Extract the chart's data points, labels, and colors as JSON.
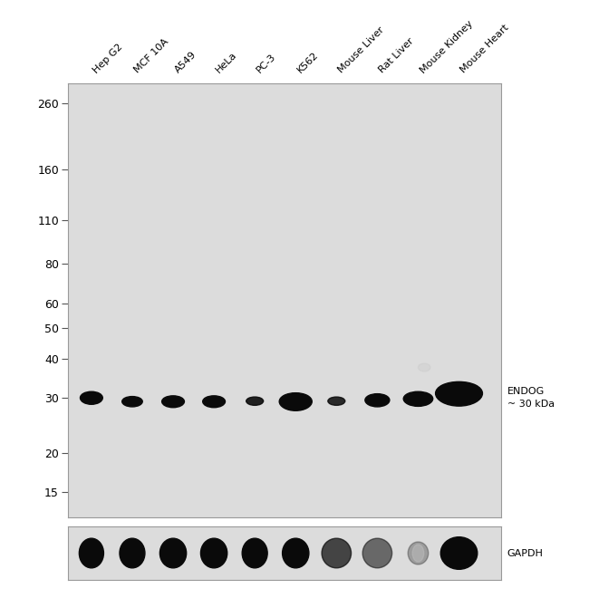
{
  "sample_labels": [
    "Hep G2",
    "MCF 10A",
    "A549",
    "HeLa",
    "PC-3",
    "K562",
    "Mouse Liver",
    "Rat Liver",
    "Mouse Kidney",
    "Mouse Heart"
  ],
  "mw_markers": [
    260,
    160,
    110,
    80,
    60,
    50,
    40,
    30,
    20,
    15
  ],
  "panel_bg": "#dcdcdc",
  "band_color": "#0a0a0a",
  "endog_label": "ENDOG\n~ 30 kDa",
  "gapdh_label": "GAPDH",
  "tick_fontsize": 9,
  "label_fontsize": 8.5,
  "endog_bands": [
    [
      0.78,
      30.0,
      0.55,
      2.8,
      1.0
    ],
    [
      1.78,
      29.2,
      0.5,
      2.2,
      1.0
    ],
    [
      2.78,
      29.2,
      0.55,
      2.5,
      1.0
    ],
    [
      3.78,
      29.2,
      0.55,
      2.5,
      1.0
    ],
    [
      4.78,
      29.3,
      0.42,
      1.8,
      0.9
    ],
    [
      5.78,
      29.2,
      0.8,
      3.8,
      1.0
    ],
    [
      6.78,
      29.3,
      0.42,
      1.8,
      0.85
    ],
    [
      7.78,
      29.5,
      0.6,
      2.8,
      1.0
    ],
    [
      8.78,
      29.8,
      0.72,
      3.2,
      1.0
    ],
    [
      9.78,
      31.0,
      1.15,
      5.5,
      1.0
    ]
  ],
  "gapdh_bands": [
    [
      0.78,
      0.5,
      0.6,
      0.55,
      1.0
    ],
    [
      1.78,
      0.5,
      0.62,
      0.55,
      1.0
    ],
    [
      2.78,
      0.5,
      0.65,
      0.55,
      1.0
    ],
    [
      3.78,
      0.5,
      0.65,
      0.55,
      1.0
    ],
    [
      4.78,
      0.5,
      0.62,
      0.55,
      1.0
    ],
    [
      5.78,
      0.5,
      0.65,
      0.55,
      1.0
    ],
    [
      6.78,
      0.5,
      0.72,
      0.55,
      0.72
    ],
    [
      7.78,
      0.5,
      0.72,
      0.55,
      0.55
    ],
    [
      8.78,
      0.5,
      0.5,
      0.42,
      0.3
    ],
    [
      9.78,
      0.5,
      0.9,
      0.6,
      1.0
    ]
  ],
  "artifact_main": [
    8.93,
    37.5,
    0.3,
    2.2,
    0.35
  ],
  "artifact_gapdh": [
    8.78,
    0.5,
    0.28,
    0.32,
    0.45
  ]
}
